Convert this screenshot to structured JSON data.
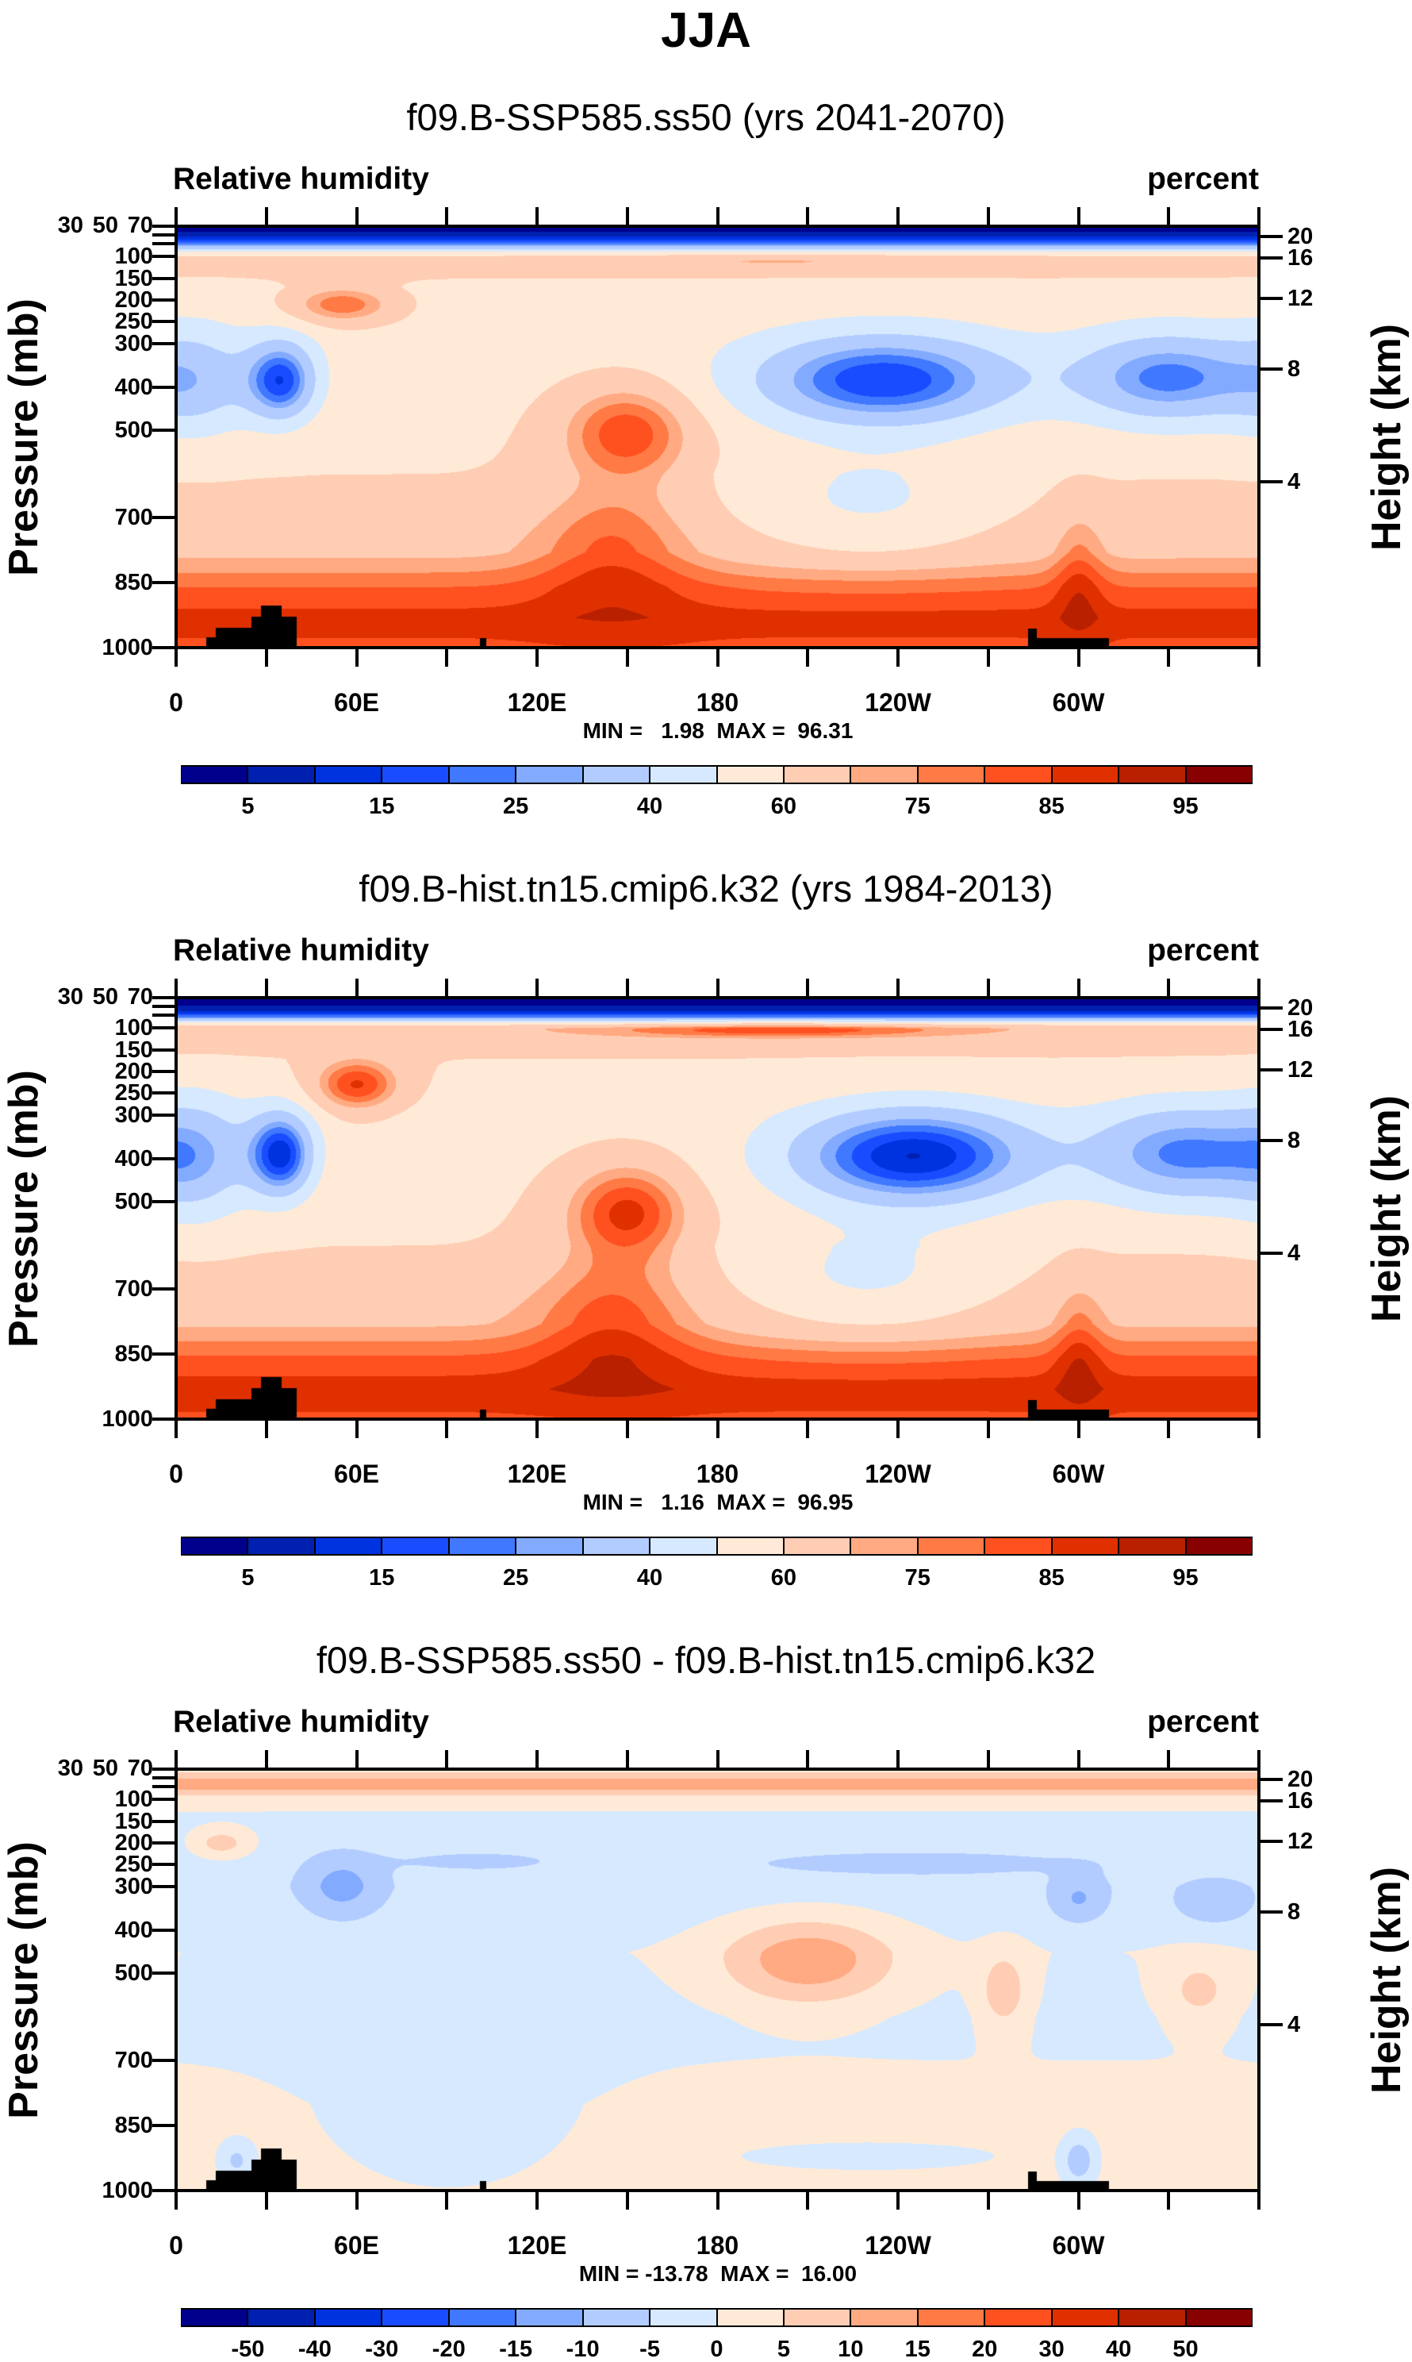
{
  "title": "JJA",
  "palette": [
    "#00008c",
    "#0020b0",
    "#0033e0",
    "#1a4cff",
    "#4078ff",
    "#82aaff",
    "#b3ccff",
    "#d6e9ff",
    "#ffead8",
    "#ffcdb3",
    "#ffaa82",
    "#ff7a45",
    "#ff5020",
    "#e03000",
    "#b82000",
    "#880000"
  ],
  "topography": [
    {
      "lon_from": 10,
      "lon_to": 13,
      "p_surface": 976
    },
    {
      "lon_from": 13,
      "lon_to": 25,
      "p_surface": 953
    },
    {
      "lon_from": 25,
      "lon_to": 28,
      "p_surface": 927
    },
    {
      "lon_from": 28,
      "lon_to": 35,
      "p_surface": 902
    },
    {
      "lon_from": 35,
      "lon_to": 40,
      "p_surface": 927
    },
    {
      "lon_from": 101,
      "lon_to": 103,
      "p_surface": 978
    },
    {
      "lon_from": 283,
      "lon_to": 286,
      "p_surface": 955
    },
    {
      "lon_from": 286,
      "lon_to": 310,
      "p_surface": 978
    }
  ],
  "chart_data": [
    {
      "type": "heatmap",
      "title": "f09.B-SSP585.ss50 (yrs 2041-2070)",
      "left_label": "Relative humidity",
      "right_label": "percent",
      "ylabel": "Pressure (mb)",
      "ylabel_right": "Height (km)",
      "min_max_text": "MIN =   1.98  MAX =  96.31",
      "min": 1.98,
      "max": 96.31,
      "xlim": [
        0,
        360
      ],
      "ylim": [
        30,
        1000
      ],
      "x_ticks": [
        {
          "lon": 0,
          "label": "0"
        },
        {
          "lon": 60,
          "label": "60E"
        },
        {
          "lon": 120,
          "label": "120E"
        },
        {
          "lon": 180,
          "label": "180"
        },
        {
          "lon": 240,
          "label": "120W"
        },
        {
          "lon": 300,
          "label": "60W"
        }
      ],
      "y_ticks": [
        {
          "p": 30,
          "label": "30"
        },
        {
          "p": 50,
          "label": "50"
        },
        {
          "p": 70,
          "label": "70"
        },
        {
          "p": 100,
          "label": "100"
        },
        {
          "p": 150,
          "label": "150"
        },
        {
          "p": 200,
          "label": "200"
        },
        {
          "p": 250,
          "label": "250"
        },
        {
          "p": 300,
          "label": "300"
        },
        {
          "p": 400,
          "label": "400"
        },
        {
          "p": 500,
          "label": "500"
        },
        {
          "p": 700,
          "label": "700"
        },
        {
          "p": 850,
          "label": "850"
        },
        {
          "p": 1000,
          "label": "1000"
        }
      ],
      "height_ticks": [
        {
          "km": 20,
          "p": 54,
          "label": "20"
        },
        {
          "km": 16,
          "p": 103,
          "label": "16"
        },
        {
          "km": 12,
          "p": 196,
          "label": "12"
        },
        {
          "km": 8,
          "p": 359,
          "label": "8"
        },
        {
          "km": 4,
          "p": 619,
          "label": "4"
        }
      ],
      "levels": [
        5,
        10,
        15,
        20,
        25,
        30,
        40,
        50,
        60,
        70,
        75,
        80,
        85,
        90,
        95
      ],
      "colorbar_labels": [
        {
          "value": 5,
          "label": "5"
        },
        {
          "value": 15,
          "label": "15"
        },
        {
          "value": 25,
          "label": "25"
        },
        {
          "value": 40,
          "label": "40"
        },
        {
          "value": 60,
          "label": "60"
        },
        {
          "value": 75,
          "label": "75"
        },
        {
          "value": 85,
          "label": "85"
        },
        {
          "value": 95,
          "label": "95"
        }
      ],
      "profile": [
        [
          30,
          2
        ],
        [
          45,
          6
        ],
        [
          60,
          14
        ],
        [
          75,
          30
        ],
        [
          88,
          50
        ],
        [
          100,
          62
        ],
        [
          130,
          63
        ],
        [
          170,
          57
        ],
        [
          300,
          56
        ],
        [
          600,
          60
        ],
        [
          780,
          68
        ],
        [
          860,
          80
        ],
        [
          930,
          87
        ],
        [
          1000,
          84
        ]
      ],
      "features": [
        {
          "lon": 35,
          "p": 385,
          "dlon": 12,
          "dp": 95,
          "amp": -40
        },
        {
          "lon": 8,
          "p": 390,
          "dlon": 18,
          "dp": 130,
          "amp": -18
        },
        {
          "lon": 235,
          "p": 385,
          "dlon": 45,
          "dp": 110,
          "amp": -42
        },
        {
          "lon": 330,
          "p": 380,
          "dlon": 32,
          "dp": 110,
          "amp": -34
        },
        {
          "lon": 55,
          "p": 210,
          "dlon": 18,
          "dp": 45,
          "amp": 22
        },
        {
          "lon": 150,
          "p": 500,
          "dlon": 22,
          "dp": 110,
          "amp": 25
        },
        {
          "lon": 145,
          "p": 760,
          "dlon": 25,
          "dp": 150,
          "amp": 14
        },
        {
          "lon": 230,
          "p": 680,
          "dlon": 45,
          "dp": 130,
          "amp": -14
        },
        {
          "lon": 300,
          "p": 820,
          "dlon": 8,
          "dp": 150,
          "amp": 10
        },
        {
          "lon": 200,
          "p": 110,
          "dlon": 60,
          "dp": 15,
          "amp": 8
        }
      ]
    },
    {
      "type": "heatmap",
      "title": "f09.B-hist.tn15.cmip6.k32 (yrs 1984-2013)",
      "left_label": "Relative humidity",
      "right_label": "percent",
      "ylabel": "Pressure (mb)",
      "ylabel_right": "Height (km)",
      "min_max_text": "MIN =   1.16  MAX =  96.95",
      "min": 1.16,
      "max": 96.95,
      "xlim": [
        0,
        360
      ],
      "ylim": [
        30,
        1000
      ],
      "x_ticks": [
        {
          "lon": 0,
          "label": "0"
        },
        {
          "lon": 60,
          "label": "60E"
        },
        {
          "lon": 120,
          "label": "120E"
        },
        {
          "lon": 180,
          "label": "180"
        },
        {
          "lon": 240,
          "label": "120W"
        },
        {
          "lon": 300,
          "label": "60W"
        }
      ],
      "y_ticks": [
        {
          "p": 30,
          "label": "30"
        },
        {
          "p": 50,
          "label": "50"
        },
        {
          "p": 70,
          "label": "70"
        },
        {
          "p": 100,
          "label": "100"
        },
        {
          "p": 150,
          "label": "150"
        },
        {
          "p": 200,
          "label": "200"
        },
        {
          "p": 250,
          "label": "250"
        },
        {
          "p": 300,
          "label": "300"
        },
        {
          "p": 400,
          "label": "400"
        },
        {
          "p": 500,
          "label": "500"
        },
        {
          "p": 700,
          "label": "700"
        },
        {
          "p": 850,
          "label": "850"
        },
        {
          "p": 1000,
          "label": "1000"
        }
      ],
      "height_ticks": [
        {
          "km": 20,
          "p": 54,
          "label": "20"
        },
        {
          "km": 16,
          "p": 103,
          "label": "16"
        },
        {
          "km": 12,
          "p": 196,
          "label": "12"
        },
        {
          "km": 8,
          "p": 359,
          "label": "8"
        },
        {
          "km": 4,
          "p": 619,
          "label": "4"
        }
      ],
      "levels": [
        5,
        10,
        15,
        20,
        25,
        30,
        40,
        50,
        60,
        70,
        75,
        80,
        85,
        90,
        95
      ],
      "colorbar_labels": [
        {
          "value": 5,
          "label": "5"
        },
        {
          "value": 15,
          "label": "15"
        },
        {
          "value": 25,
          "label": "25"
        },
        {
          "value": 40,
          "label": "40"
        },
        {
          "value": 60,
          "label": "60"
        },
        {
          "value": 75,
          "label": "75"
        },
        {
          "value": 85,
          "label": "85"
        },
        {
          "value": 95,
          "label": "95"
        }
      ],
      "profile": [
        [
          30,
          1
        ],
        [
          45,
          4
        ],
        [
          60,
          10
        ],
        [
          75,
          25
        ],
        [
          88,
          55
        ],
        [
          100,
          68
        ],
        [
          130,
          66
        ],
        [
          170,
          60
        ],
        [
          300,
          57
        ],
        [
          600,
          60
        ],
        [
          780,
          69
        ],
        [
          860,
          81
        ],
        [
          930,
          88
        ],
        [
          1000,
          84
        ]
      ],
      "features": [
        {
          "lon": 35,
          "p": 390,
          "dlon": 11,
          "dp": 100,
          "amp": -44
        },
        {
          "lon": 8,
          "p": 400,
          "dlon": 18,
          "dp": 150,
          "amp": -20
        },
        {
          "lon": 245,
          "p": 395,
          "dlon": 42,
          "dp": 115,
          "amp": -48
        },
        {
          "lon": 335,
          "p": 390,
          "dlon": 32,
          "dp": 120,
          "amp": -34
        },
        {
          "lon": 60,
          "p": 230,
          "dlon": 14,
          "dp": 60,
          "amp": 27
        },
        {
          "lon": 150,
          "p": 520,
          "dlon": 20,
          "dp": 110,
          "amp": 27
        },
        {
          "lon": 145,
          "p": 760,
          "dlon": 25,
          "dp": 150,
          "amp": 15
        },
        {
          "lon": 230,
          "p": 690,
          "dlon": 45,
          "dp": 130,
          "amp": -15
        },
        {
          "lon": 300,
          "p": 820,
          "dlon": 8,
          "dp": 150,
          "amp": 10
        },
        {
          "lon": 200,
          "p": 105,
          "dlon": 55,
          "dp": 15,
          "amp": 16
        }
      ]
    },
    {
      "type": "heatmap",
      "title": "f09.B-SSP585.ss50 - f09.B-hist.tn15.cmip6.k32",
      "left_label": "Relative humidity",
      "right_label": "percent",
      "ylabel": "Pressure (mb)",
      "ylabel_right": "Height (km)",
      "min_max_text": "MIN = -13.78  MAX =  16.00",
      "min": -13.78,
      "max": 16.0,
      "xlim": [
        0,
        360
      ],
      "ylim": [
        30,
        1000
      ],
      "x_ticks": [
        {
          "lon": 0,
          "label": "0"
        },
        {
          "lon": 60,
          "label": "60E"
        },
        {
          "lon": 120,
          "label": "120E"
        },
        {
          "lon": 180,
          "label": "180"
        },
        {
          "lon": 240,
          "label": "120W"
        },
        {
          "lon": 300,
          "label": "60W"
        }
      ],
      "y_ticks": [
        {
          "p": 30,
          "label": "30"
        },
        {
          "p": 50,
          "label": "50"
        },
        {
          "p": 70,
          "label": "70"
        },
        {
          "p": 100,
          "label": "100"
        },
        {
          "p": 150,
          "label": "150"
        },
        {
          "p": 200,
          "label": "200"
        },
        {
          "p": 250,
          "label": "250"
        },
        {
          "p": 300,
          "label": "300"
        },
        {
          "p": 400,
          "label": "400"
        },
        {
          "p": 500,
          "label": "500"
        },
        {
          "p": 700,
          "label": "700"
        },
        {
          "p": 850,
          "label": "850"
        },
        {
          "p": 1000,
          "label": "1000"
        }
      ],
      "height_ticks": [
        {
          "km": 20,
          "p": 54,
          "label": "20"
        },
        {
          "km": 16,
          "p": 103,
          "label": "16"
        },
        {
          "km": 12,
          "p": 196,
          "label": "12"
        },
        {
          "km": 8,
          "p": 359,
          "label": "8"
        },
        {
          "km": 4,
          "p": 619,
          "label": "4"
        }
      ],
      "levels": [
        -50,
        -40,
        -30,
        -20,
        -15,
        -10,
        -5,
        0,
        5,
        10,
        15,
        20,
        30,
        40,
        50
      ],
      "colorbar_labels": [
        {
          "value": -50,
          "label": "-50"
        },
        {
          "value": -40,
          "label": "-40"
        },
        {
          "value": -30,
          "label": "-30"
        },
        {
          "value": -20,
          "label": "-20"
        },
        {
          "value": -15,
          "label": "-15"
        },
        {
          "value": -10,
          "label": "-10"
        },
        {
          "value": -5,
          "label": "-5"
        },
        {
          "value": 0,
          "label": "0"
        },
        {
          "value": 5,
          "label": "5"
        },
        {
          "value": 10,
          "label": "10"
        },
        {
          "value": 15,
          "label": "15"
        },
        {
          "value": 20,
          "label": "20"
        },
        {
          "value": 30,
          "label": "30"
        },
        {
          "value": 40,
          "label": "40"
        },
        {
          "value": 50,
          "label": "50"
        }
      ],
      "profile": [
        [
          30,
          3
        ],
        [
          45,
          8
        ],
        [
          60,
          13
        ],
        [
          72,
          12
        ],
        [
          85,
          6
        ],
        [
          100,
          2
        ],
        [
          140,
          -1
        ],
        [
          200,
          -2
        ],
        [
          300,
          -3
        ],
        [
          450,
          0
        ],
        [
          600,
          -1
        ],
        [
          800,
          1
        ],
        [
          1000,
          1
        ]
      ],
      "features": [
        {
          "lon": 55,
          "p": 300,
          "dlon": 14,
          "dp": 80,
          "amp": -9
        },
        {
          "lon": 245,
          "p": 245,
          "dlon": 60,
          "dp": 30,
          "amp": -5
        },
        {
          "lon": 100,
          "p": 240,
          "dlon": 30,
          "dp": 25,
          "amp": -4
        },
        {
          "lon": 300,
          "p": 330,
          "dlon": 10,
          "dp": 60,
          "amp": -8
        },
        {
          "lon": 345,
          "p": 340,
          "dlon": 15,
          "dp": 60,
          "amp": -6
        },
        {
          "lon": 210,
          "p": 470,
          "dlon": 28,
          "dp": 100,
          "amp": 14
        },
        {
          "lon": 275,
          "p": 540,
          "dlon": 8,
          "dp": 90,
          "amp": 9
        },
        {
          "lon": 340,
          "p": 540,
          "dlon": 12,
          "dp": 80,
          "amp": 7
        },
        {
          "lon": 15,
          "p": 200,
          "dlon": 10,
          "dp": 35,
          "amp": 9
        },
        {
          "lon": 90,
          "p": 730,
          "dlon": 45,
          "dp": 250,
          "amp": -3
        },
        {
          "lon": 300,
          "p": 930,
          "dlon": 5,
          "dp": 50,
          "amp": -10
        },
        {
          "lon": 20,
          "p": 930,
          "dlon": 5,
          "dp": 40,
          "amp": -7
        },
        {
          "lon": 230,
          "p": 920,
          "dlon": 40,
          "dp": 30,
          "amp": -3
        }
      ]
    }
  ]
}
